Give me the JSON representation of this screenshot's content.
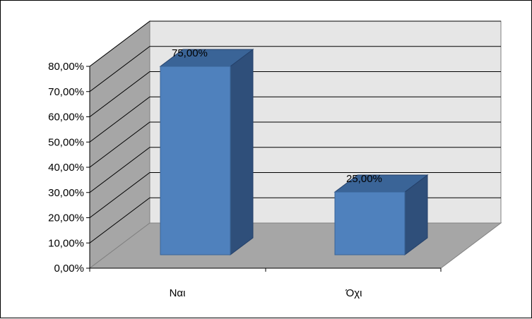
{
  "chart_data": {
    "type": "bar",
    "categories": [
      "Ναι",
      "Όχι"
    ],
    "values": [
      75,
      25
    ],
    "data_labels": [
      "75,00%",
      "25,00%"
    ],
    "y_ticks": [
      "0,00%",
      "10,00%",
      "20,00%",
      "30,00%",
      "40,00%",
      "50,00%",
      "60,00%",
      "70,00%",
      "80,00%"
    ],
    "ylim": [
      0,
      80
    ],
    "title": "",
    "xlabel": "",
    "ylabel": "",
    "grid": true,
    "legend": "none",
    "style": "3d-column"
  },
  "colors": {
    "bar_front": "#4f81bd",
    "bar_side": "#2f4f7a",
    "bar_top": "#3a6497",
    "back_wall": "#e6e6e6",
    "side_wall": "#a6a6a6",
    "floor": "#a6a6a6",
    "grid": "#000000"
  }
}
